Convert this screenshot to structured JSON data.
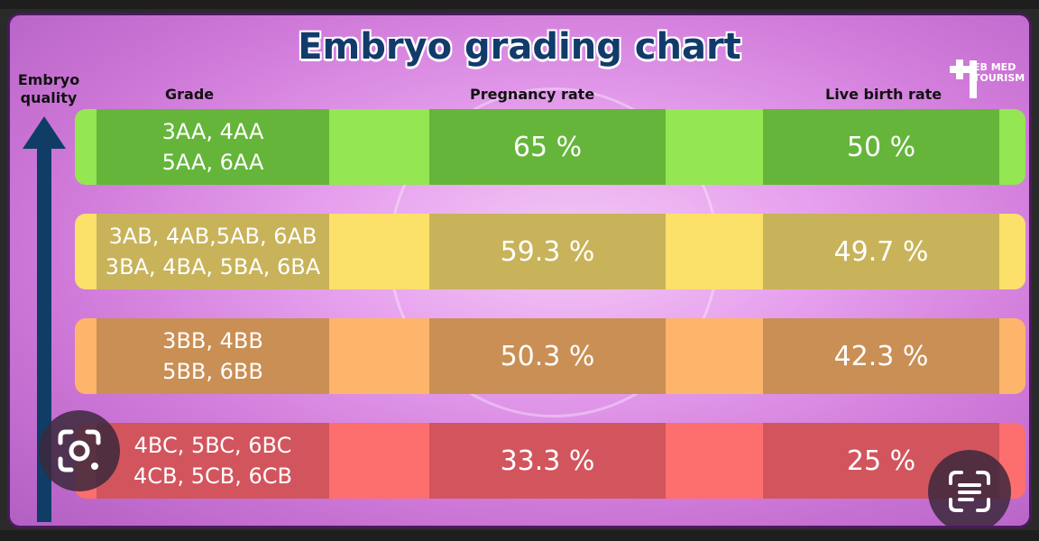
{
  "title": "Embryo grading chart",
  "logo": {
    "brand": "EB MED",
    "sub": "TOURISM",
    "icon": "plus-cross-icon"
  },
  "axis_label": "Embryo quality",
  "headers": {
    "grade": "Grade",
    "pregnancy": "Pregnancy rate",
    "live_birth": "Live birth rate"
  },
  "colors": {
    "title": "#123b6b",
    "arrow": "#0f3d66",
    "rows": [
      {
        "light": "#94e652",
        "dark": "#65b53a"
      },
      {
        "light": "#fbe06a",
        "dark": "#c8b35a"
      },
      {
        "light": "#fcb56a",
        "dark": "#c98f55"
      },
      {
        "light": "#fd6e6e",
        "dark": "#d2555e"
      }
    ]
  },
  "chart_data": {
    "type": "table",
    "title": "Embryo grading chart",
    "columns": [
      "Grade",
      "Pregnancy rate",
      "Live birth rate"
    ],
    "rows": [
      {
        "grade_line1": "3AA, 4AA",
        "grade_line2": "5AA, 6AA",
        "pregnancy_rate": "65 %",
        "live_birth_rate": "50 %"
      },
      {
        "grade_line1": "3AB, 4AB,5AB, 6AB",
        "grade_line2": "3BA, 4BA, 5BA, 6BA",
        "pregnancy_rate": "59.3 %",
        "live_birth_rate": "49.7 %"
      },
      {
        "grade_line1": "3BB, 4BB",
        "grade_line2": "5BB, 6BB",
        "pregnancy_rate": "50.3 %",
        "live_birth_rate": "42.3 %"
      },
      {
        "grade_line1": "4BC, 5BC, 6BC",
        "grade_line2": "4CB, 5CB, 6CB",
        "pregnancy_rate": "33.3 %",
        "live_birth_rate": "25 %"
      }
    ]
  },
  "overlay": {
    "left_button_icon": "camera-lens-icon",
    "right_button_icon": "text-scan-icon"
  }
}
